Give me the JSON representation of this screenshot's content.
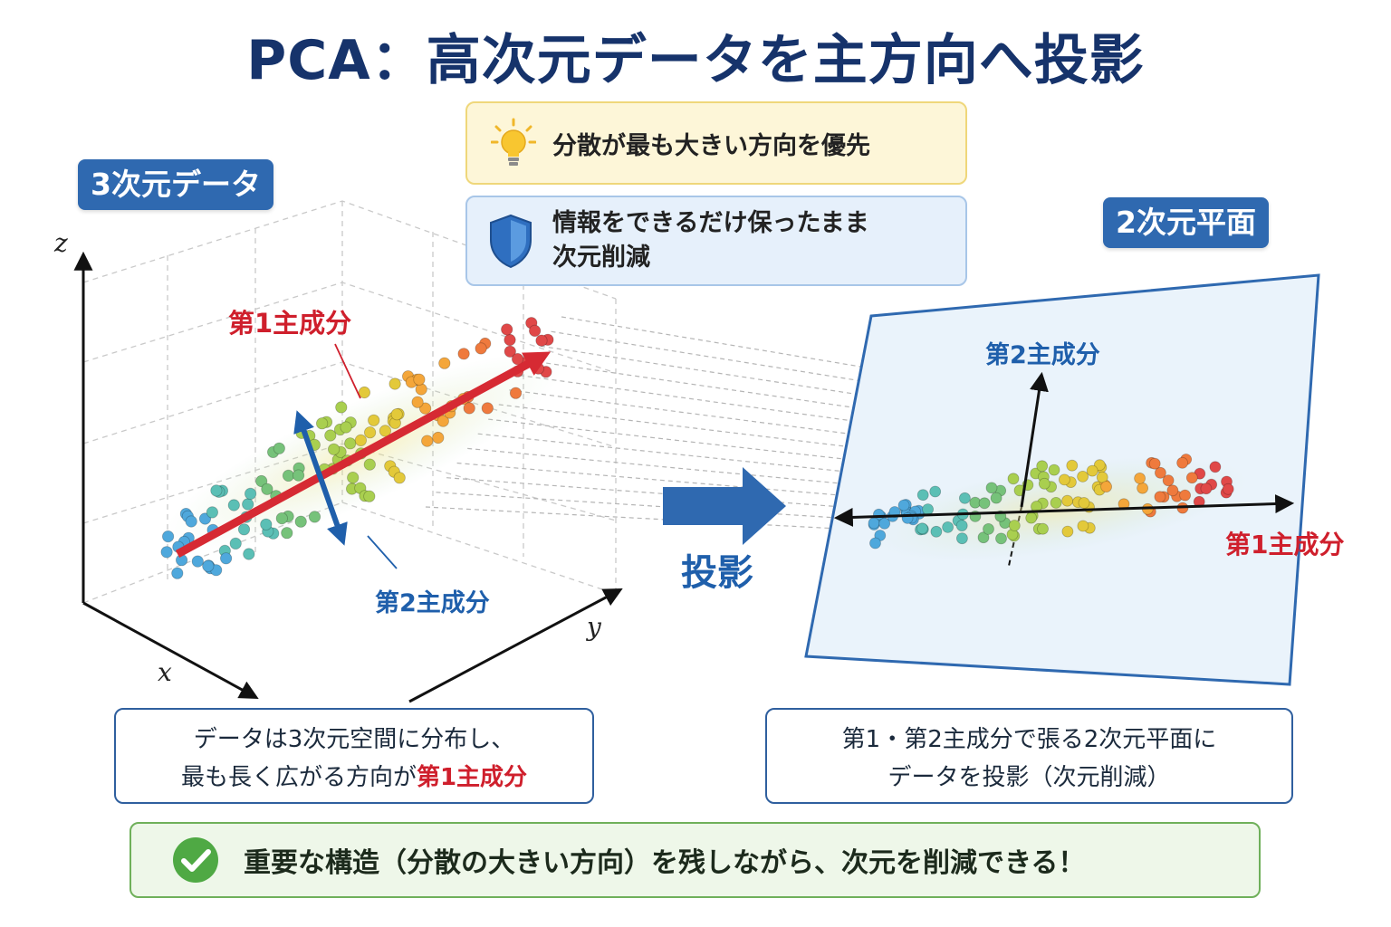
{
  "title": "PCA：高次元データを主方向へ投影",
  "tags": {
    "left": "3次元データ",
    "right": "2次元平面"
  },
  "info": {
    "variance": "分散が最も大きい方向を優先",
    "preserve_line1": "情報をできるだけ保ったまま",
    "preserve_line2": "次元削減"
  },
  "labels3d": {
    "pc1": "第1主成分",
    "pc2": "第2主成分",
    "axis_x": "x",
    "axis_y": "y",
    "axis_z": "z"
  },
  "projection_label": "投影",
  "labels2d": {
    "pc1": "第1主成分",
    "pc2": "第2主成分"
  },
  "caption_left": {
    "line1": "データは3次元空間に分布し、",
    "line2_prefix": "最も長く広がる方向が",
    "line2_highlight": "第1主成分"
  },
  "caption_right": {
    "line1": "第1・第2主成分で張る2次元平面に",
    "line2": "データを投影（次元削減）"
  },
  "banner": "重要な構造（分散の大きい方向）を残しながら、次元を削減できる！",
  "colors": {
    "title": "#16336b",
    "tag": "#2f69b0",
    "pc1": "#cf1f2c",
    "pc2": "#1f5fab",
    "check": "#4fa944"
  },
  "icons": {
    "variance": "lightbulb-icon",
    "preserve": "shield-icon",
    "banner": "check-circle-icon"
  }
}
